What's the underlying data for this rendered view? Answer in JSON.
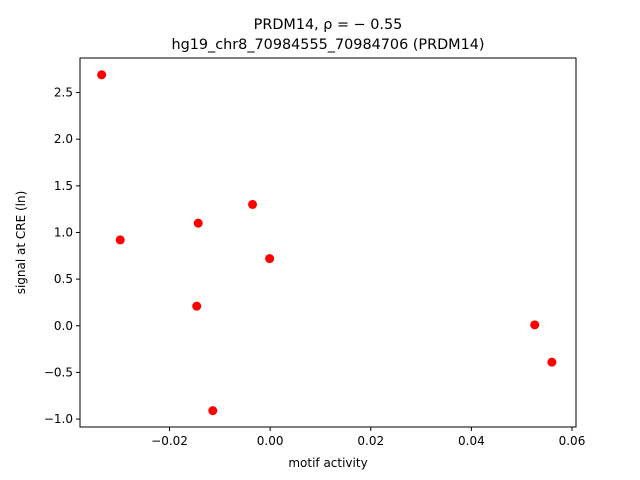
{
  "chart_data": {
    "type": "scatter",
    "title_line1": "PRDM14, ρ = − 0.55",
    "title_line2": "hg19_chr8_70984555_70984706 (PRDM14)",
    "xlabel": "motif activity",
    "ylabel": "signal at CRE (ln)",
    "xlim": [
      -0.0378,
      0.0608
    ],
    "ylim": [
      -1.085,
      2.87
    ],
    "xticks": [
      {
        "value": -0.02,
        "label": "−0.02"
      },
      {
        "value": 0.0,
        "label": "0.00"
      },
      {
        "value": 0.02,
        "label": "0.02"
      },
      {
        "value": 0.04,
        "label": "0.04"
      },
      {
        "value": 0.06,
        "label": "0.06"
      }
    ],
    "yticks": [
      {
        "value": -1.0,
        "label": "−1.0"
      },
      {
        "value": -0.5,
        "label": "−0.5"
      },
      {
        "value": 0.0,
        "label": "0.0"
      },
      {
        "value": 0.5,
        "label": "0.5"
      },
      {
        "value": 1.0,
        "label": "1.0"
      },
      {
        "value": 1.5,
        "label": "1.5"
      },
      {
        "value": 2.0,
        "label": "2.0"
      },
      {
        "value": 2.5,
        "label": "2.5"
      }
    ],
    "marker_color": "#ff0000",
    "grid": false,
    "points": [
      {
        "x": -0.0335,
        "y": 2.69
      },
      {
        "x": -0.0298,
        "y": 0.92
      },
      {
        "x": -0.0143,
        "y": 1.1
      },
      {
        "x": -0.0146,
        "y": 0.21
      },
      {
        "x": -0.0114,
        "y": -0.91
      },
      {
        "x": -0.0035,
        "y": 1.3
      },
      {
        "x": -0.0001,
        "y": 0.72
      },
      {
        "x": 0.0526,
        "y": 0.01
      },
      {
        "x": 0.056,
        "y": -0.39
      }
    ]
  }
}
